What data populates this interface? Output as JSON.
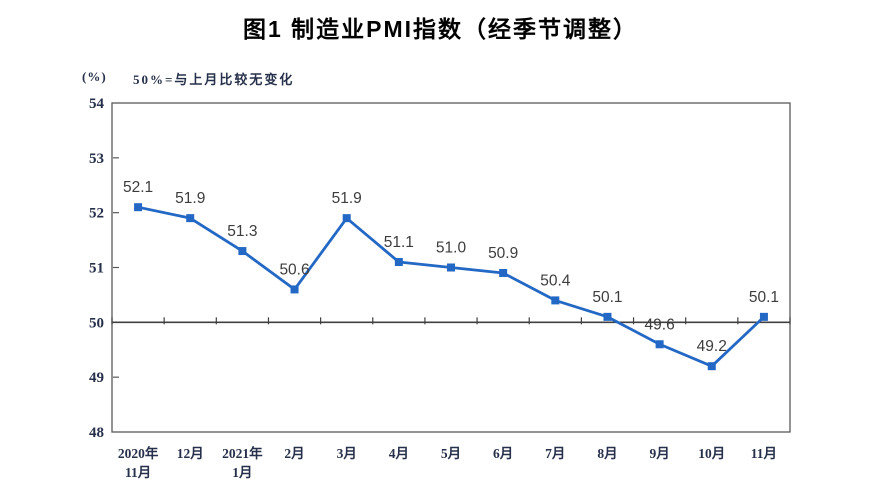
{
  "title": "图1 制造业PMI指数（经季节调整）",
  "unit_label": "(%)",
  "note": "50%=与上月比较无变化",
  "chart_data": {
    "type": "line",
    "title": "图1 制造业PMI指数（经季节调整）",
    "subtitle": "50%=与上月比较无变化",
    "ylabel": "(%)",
    "xlabel": "",
    "categories": [
      "2020年11月",
      "12月",
      "2021年1月",
      "2月",
      "3月",
      "4月",
      "5月",
      "6月",
      "7月",
      "8月",
      "9月",
      "10月",
      "11月"
    ],
    "category_label_lines": [
      [
        "2020年",
        "11月"
      ],
      [
        "12月"
      ],
      [
        "2021年",
        "1月"
      ],
      [
        "2月"
      ],
      [
        "3月"
      ],
      [
        "4月"
      ],
      [
        "5月"
      ],
      [
        "6月"
      ],
      [
        "7月"
      ],
      [
        "8月"
      ],
      [
        "9月"
      ],
      [
        "10月"
      ],
      [
        "11月"
      ]
    ],
    "series": [
      {
        "name": "制造业PMI",
        "values": [
          52.1,
          51.9,
          51.3,
          50.6,
          51.9,
          51.1,
          51.0,
          50.9,
          50.4,
          50.1,
          49.6,
          49.2,
          50.1
        ]
      }
    ],
    "values": [
      52.1,
      51.9,
      51.3,
      50.6,
      51.9,
      51.1,
      51.0,
      50.9,
      50.4,
      50.1,
      49.6,
      49.2,
      50.1
    ],
    "labels": [
      "52.1",
      "51.9",
      "51.3",
      "50.6",
      "51.9",
      "51.1",
      "51.0",
      "50.9",
      "50.4",
      "50.1",
      "49.6",
      "49.2",
      "50.1"
    ],
    "ylim": [
      48,
      54
    ],
    "yticks": [
      48,
      49,
      50,
      51,
      52,
      53,
      54
    ],
    "reference_line": 50,
    "grid": false,
    "legend": false,
    "marker": "square",
    "colors": {
      "line": "#2268C4",
      "axis": "#595959",
      "reference_line": "#404040",
      "data_label": "#3d3d3d",
      "axis_label": "#26304a"
    }
  }
}
